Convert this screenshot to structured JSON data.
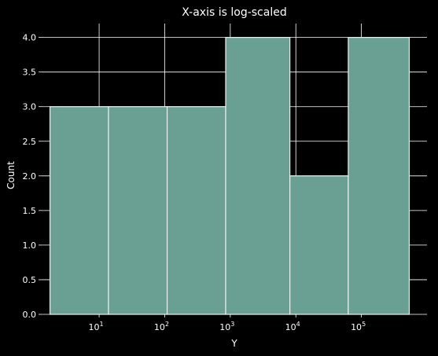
{
  "chart_data": {
    "type": "bar",
    "subtype": "histogram",
    "title": "X-axis is log-scaled",
    "xlabel": "Y",
    "ylabel": "Count",
    "x_scale": "log",
    "xlim": [
      1.33,
      1000000
    ],
    "ylim": [
      0,
      4.2
    ],
    "bins": [
      {
        "x0": 1.78,
        "x1": 13.9,
        "count": 3
      },
      {
        "x0": 13.9,
        "x1": 109,
        "count": 3
      },
      {
        "x0": 109,
        "x1": 851,
        "count": 3
      },
      {
        "x0": 851,
        "x1": 8110,
        "count": 4
      },
      {
        "x0": 8110,
        "x1": 63000,
        "count": 2
      },
      {
        "x0": 63000,
        "x1": 537000,
        "count": 4
      }
    ],
    "x_ticks": [
      {
        "value": 10,
        "base": "10",
        "exp": "1"
      },
      {
        "value": 100,
        "base": "10",
        "exp": "2"
      },
      {
        "value": 1000,
        "base": "10",
        "exp": "3"
      },
      {
        "value": 10000,
        "base": "10",
        "exp": "4"
      },
      {
        "value": 100000,
        "base": "10",
        "exp": "5"
      }
    ],
    "y_ticks": [
      {
        "value": 0,
        "label": "0.0"
      },
      {
        "value": 0.5,
        "label": "0.5"
      },
      {
        "value": 1,
        "label": "1.0"
      },
      {
        "value": 1.5,
        "label": "1.5"
      },
      {
        "value": 2,
        "label": "2.0"
      },
      {
        "value": 2.5,
        "label": "2.5"
      },
      {
        "value": 3,
        "label": "3.0"
      },
      {
        "value": 3.5,
        "label": "3.5"
      },
      {
        "value": 4,
        "label": "4.0"
      }
    ],
    "grid": true,
    "colors": {
      "background": "#000000",
      "bar_fill": "#6a9f93",
      "bar_edge": "#e6f2ee",
      "grid": "#ffffff",
      "text": "#ffffff"
    }
  }
}
